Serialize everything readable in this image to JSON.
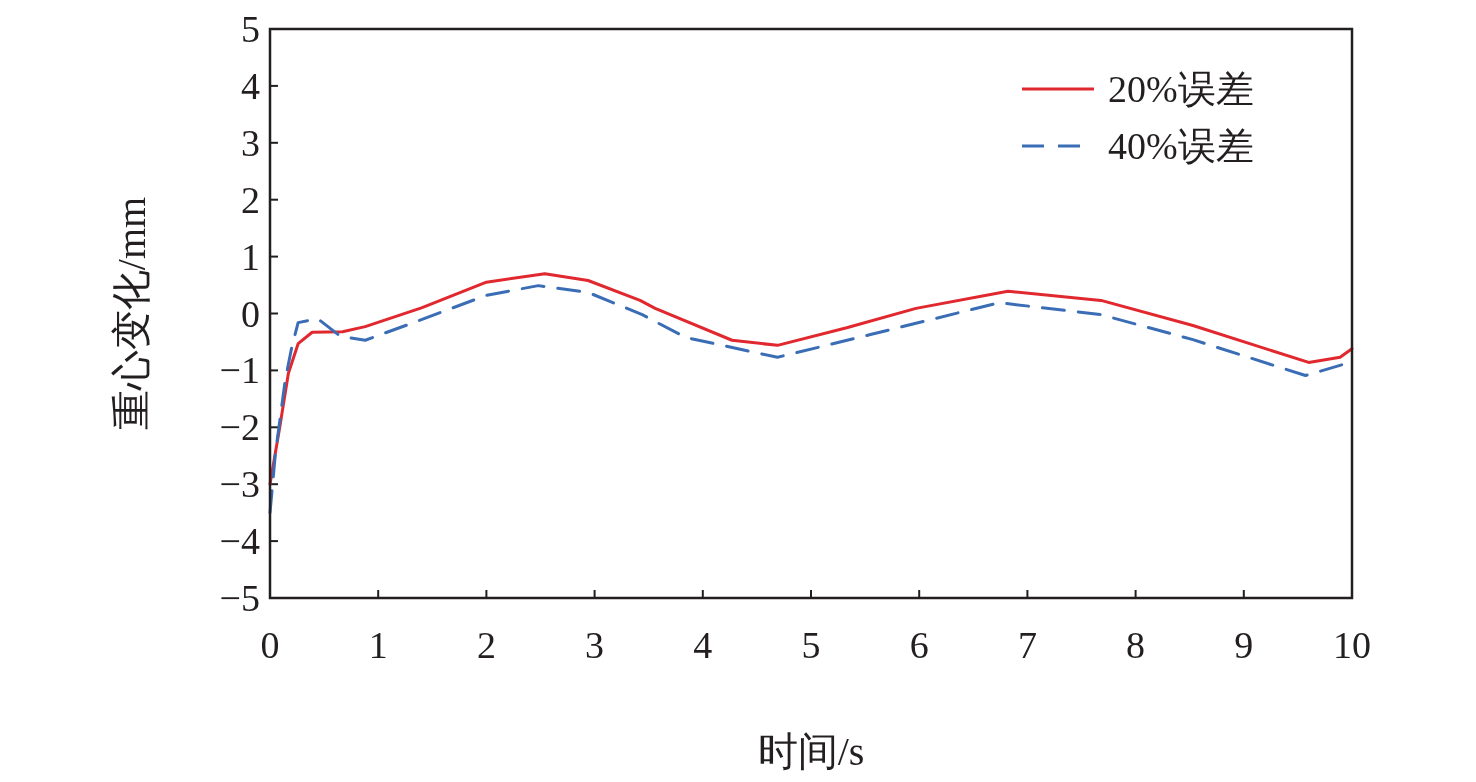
{
  "chart_data": {
    "type": "line",
    "xlabel": "时间/s",
    "ylabel": "重心变化/mm",
    "xlim": [
      0,
      10
    ],
    "xticks": [
      0,
      1,
      2,
      3,
      4,
      5,
      6,
      7,
      8,
      9,
      10
    ],
    "ylim": [
      -5,
      5
    ],
    "yticks": [
      -5,
      -4,
      -3,
      -2,
      -1,
      0,
      1,
      2,
      3,
      4,
      5
    ],
    "grid": false,
    "legend": "top right",
    "series": [
      {
        "name": "20%误差",
        "color": "#e0282e",
        "line_style": "solid",
        "x": [
          0,
          0.09,
          0.17,
          0.26,
          0.39,
          0.67,
          0.88,
          1.4,
          2.0,
          2.54,
          2.94,
          3.42,
          3.56,
          4.27,
          4.69,
          5.33,
          5.97,
          6.82,
          7.68,
          8.53,
          9.6,
          9.89,
          10
        ],
        "values": [
          -3.0,
          -2.0,
          -1.05,
          -0.53,
          -0.33,
          -0.32,
          -0.23,
          0.1,
          0.55,
          0.7,
          0.58,
          0.23,
          0.09,
          -0.47,
          -0.56,
          -0.25,
          0.09,
          0.39,
          0.23,
          -0.21,
          -0.86,
          -0.77,
          -0.62
        ]
      },
      {
        "name": "40%误差",
        "color": "#3a6db5",
        "line_style": "dashed",
        "x": [
          0,
          0.05,
          0.14,
          0.2,
          0.26,
          0.44,
          0.65,
          0.88,
          1.34,
          2.0,
          2.48,
          2.94,
          3.44,
          3.84,
          4.69,
          5.55,
          6.74,
          7.68,
          8.53,
          9.57,
          10
        ],
        "values": [
          -3.5,
          -2.46,
          -1.18,
          -0.6,
          -0.16,
          -0.09,
          -0.4,
          -0.47,
          -0.15,
          0.32,
          0.49,
          0.37,
          -0.02,
          -0.42,
          -0.77,
          -0.37,
          0.19,
          -0.02,
          -0.46,
          -1.09,
          -0.85
        ]
      }
    ]
  }
}
